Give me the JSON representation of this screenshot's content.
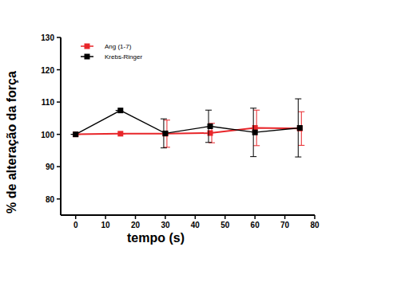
{
  "chart_data": {
    "type": "line",
    "x_label": "tempo (s)",
    "y_label": "% de alteração da força",
    "x": [
      0,
      15,
      30,
      45,
      60,
      75
    ],
    "xlim": [
      -5,
      80
    ],
    "xticks": [
      0,
      10,
      20,
      30,
      40,
      50,
      60,
      70,
      80
    ],
    "ylim": [
      75,
      130
    ],
    "yticks": [
      80,
      90,
      100,
      110,
      120,
      130
    ],
    "legend": "top-left",
    "series": [
      {
        "name": "Ang (1-7)",
        "color": "#e8262a",
        "marker": "square",
        "line_style": "solid",
        "values": [
          100,
          100.2,
          100.2,
          100.4,
          102,
          101.8
        ],
        "errors": [
          0,
          0,
          4.2,
          3,
          5.5,
          5.2
        ]
      },
      {
        "name": "Krebs-Ringer",
        "color": "#000000",
        "marker": "square",
        "line_style": "solid",
        "values": [
          100,
          107.4,
          100.3,
          102.5,
          100.6,
          102
        ],
        "errors": [
          0,
          0,
          4.5,
          5,
          7.5,
          9
        ]
      }
    ]
  }
}
